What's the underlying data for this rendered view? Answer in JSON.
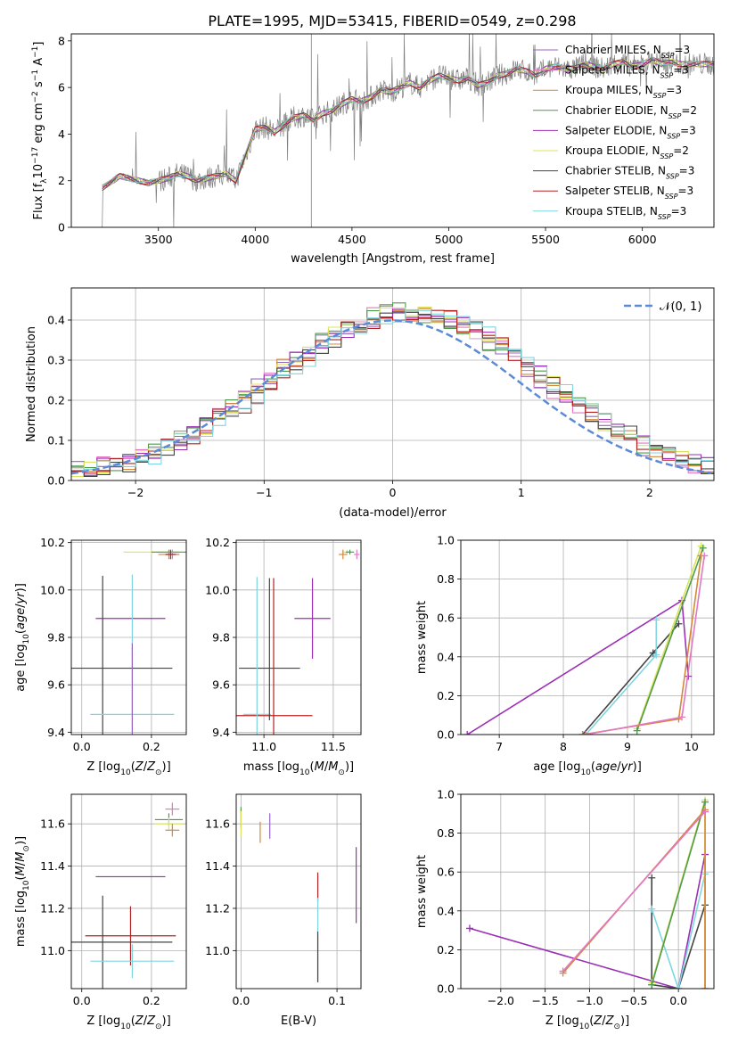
{
  "figure_title": "PLATE=1995, MJD=53415, FIBERID=0549, z=0.298",
  "colors": {
    "Chabrier MILES": "#9467bd",
    "Salpeter MILES": "#e377c2",
    "Kroupa MILES": "#d4883a",
    "Chabrier ELODIE": "#4f9a4f",
    "Salpeter ELODIE": "#9b2fb5",
    "Kroupa ELODIE": "#dbe45a",
    "Chabrier STELIB": "#444444",
    "Salpeter STELIB": "#b22222",
    "Kroupa STELIB": "#7fd6e0",
    "normal": "#5b8bd8",
    "data": "#7f7f7f"
  },
  "chart_data": [
    {
      "id": "spectrum",
      "type": "line",
      "title": "PLATE=1995, MJD=53415, FIBERID=0549, z=0.298",
      "xlabel": "wavelength [Angstrom, rest frame]",
      "ylabel": "Flux [f_λ 10^-17 erg cm^-2 s^-1 A^-1]",
      "xlim": [
        3050,
        6370
      ],
      "ylim": [
        0,
        8.3
      ],
      "xticks": [
        3500,
        4000,
        4500,
        5000,
        5500,
        6000
      ],
      "yticks": [
        0,
        2,
        4,
        6,
        8
      ],
      "legend_position": "top-right",
      "continuum_x": [
        3210,
        3250,
        3300,
        3350,
        3400,
        3450,
        3500,
        3550,
        3600,
        3650,
        3700,
        3750,
        3800,
        3850,
        3900,
        3950,
        4000,
        4050,
        4100,
        4150,
        4200,
        4250,
        4300,
        4350,
        4400,
        4450,
        4500,
        4550,
        4600,
        4650,
        4700,
        4750,
        4800,
        4850,
        4900,
        4950,
        5000,
        5050,
        5100,
        5150,
        5200,
        5250,
        5300,
        5350,
        5400,
        5450,
        5500,
        5550,
        5600,
        5650,
        5700,
        5750,
        5800,
        5850,
        5900,
        5950,
        6000,
        6050,
        6100,
        6150,
        6200
      ],
      "continuum_y": [
        1.7,
        1.9,
        2.2,
        2.1,
        2.0,
        1.9,
        2.0,
        2.1,
        2.3,
        2.2,
        2.0,
        2.1,
        2.2,
        2.3,
        2.0,
        3.1,
        4.2,
        4.3,
        4.1,
        4.4,
        4.7,
        4.8,
        4.6,
        4.9,
        5.0,
        5.3,
        5.5,
        5.4,
        5.6,
        5.9,
        5.8,
        6.0,
        6.2,
        6.0,
        6.3,
        6.5,
        6.4,
        6.3,
        6.4,
        6.1,
        6.2,
        6.5,
        6.6,
        6.8,
        6.7,
        6.5,
        6.8,
        6.9,
        6.8,
        6.8,
        7.0,
        6.9,
        6.8,
        7.0,
        7.1,
        6.9,
        7.0,
        7.2,
        7.0,
        7.1,
        7.0
      ],
      "series": [
        {
          "name": "Chabrier MILES, N_SSP=3"
        },
        {
          "name": "Salpeter MILES, N_SSP=3"
        },
        {
          "name": "Kroupa MILES, N_SSP=3"
        },
        {
          "name": "Chabrier ELODIE, N_SSP=2"
        },
        {
          "name": "Salpeter ELODIE, N_SSP=3"
        },
        {
          "name": "Kroupa ELODIE, N_SSP=2"
        },
        {
          "name": "Chabrier STELIB, N_SSP=3"
        },
        {
          "name": "Salpeter STELIB, N_SSP=3"
        },
        {
          "name": "Kroupa STELIB, N_SSP=3"
        }
      ]
    },
    {
      "id": "residuals",
      "type": "line",
      "xlabel": "(data-model)/error",
      "ylabel": "Normed distribution",
      "xlim": [
        -2.5,
        2.5
      ],
      "ylim": [
        0,
        0.48
      ],
      "xticks": [
        -2,
        -1,
        0,
        1,
        2
      ],
      "yticks": [
        0.0,
        0.1,
        0.2,
        0.3,
        0.4
      ],
      "grid": true,
      "legend_position": "top-right",
      "legend": "𝒩(0, 1)",
      "bin_width": 0.1
    },
    {
      "id": "age-vs-Z",
      "type": "scatter",
      "xlabel": "Z [log10(Z/Z⊙)]",
      "ylabel": "age [log10(age/yr)]",
      "xlim": [
        -0.03,
        0.3
      ],
      "ylim": [
        9.39,
        10.21
      ],
      "xticks": [
        0.0,
        0.2
      ],
      "yticks": [
        9.4,
        9.6,
        9.8,
        10.0,
        10.2
      ],
      "grid": true,
      "points": [
        {
          "model": "Kroupa ELODIE",
          "x": 0.2,
          "y": 10.16,
          "xerr": 0.08,
          "yerr": 0.01
        },
        {
          "model": "Chabrier ELODIE",
          "x": 0.25,
          "y": 10.16,
          "xerr": 0.05,
          "yerr": 0.01
        },
        {
          "model": "Salpeter MILES",
          "x": 0.26,
          "y": 10.15,
          "xerr": 0.02,
          "yerr": 0.02
        },
        {
          "model": "Kroupa MILES",
          "x": 0.25,
          "y": 10.15,
          "xerr": 0.03,
          "yerr": 0.02
        },
        {
          "model": "Salpeter STELIB",
          "x": 0.255,
          "y": 10.15,
          "xerr": 0.015,
          "yerr": 0.02
        },
        {
          "model": "Salpeter ELODIE",
          "x": 0.14,
          "y": 9.88,
          "xerr": 0.1,
          "yerr": 0.0
        },
        {
          "model": "Chabrier STELIB",
          "x": 0.06,
          "y": 9.67,
          "xerr": 0.2,
          "yerr": 0.39
        },
        {
          "model": "Kroupa STELIB",
          "x": 0.145,
          "y": 9.475,
          "xerr": 0.12,
          "yerr": 0.59
        },
        {
          "model": "Chabrier MILES",
          "x": 0.145,
          "y": 9.475,
          "xerr": 0.0,
          "yerr": 0.3
        }
      ]
    },
    {
      "id": "age-vs-mass",
      "type": "scatter",
      "xlabel": "mass [log10(M/M⊙)]",
      "ylabel": "",
      "xlim": [
        10.8,
        11.7
      ],
      "ylim": [
        9.39,
        10.21
      ],
      "xticks": [
        11.0,
        11.5
      ],
      "yticks": [
        9.4,
        9.6,
        9.8,
        10.0,
        10.2
      ],
      "grid": true,
      "points": [
        {
          "model": "Salpeter ELODIE",
          "x": 11.35,
          "y": 9.88,
          "xerr": 0.13,
          "yerr": 0.17
        },
        {
          "model": "Chabrier STELIB",
          "x": 11.04,
          "y": 9.67,
          "xerr": 0.22,
          "yerr": 0.0
        },
        {
          "model": "Salpeter STELIB",
          "x": 11.07,
          "y": 9.47,
          "xerr": 0.28,
          "yerr": 0.58
        },
        {
          "model": "Kroupa STELIB",
          "x": 10.95,
          "y": 9.475,
          "xerr": 0.1,
          "yerr": 0.58
        },
        {
          "model": "Chabrier STELIB",
          "x": 11.04,
          "y": 9.75,
          "xerr": 0.0,
          "yerr": 0.3
        },
        {
          "model": "Kroupa ELODIE",
          "x": 11.6,
          "y": 10.16,
          "xerr": 0.03,
          "yerr": 0.01
        },
        {
          "model": "Chabrier ELODIE",
          "x": 11.62,
          "y": 10.16,
          "xerr": 0.03,
          "yerr": 0.01
        },
        {
          "model": "Kroupa MILES",
          "x": 11.57,
          "y": 10.15,
          "xerr": 0.03,
          "yerr": 0.02
        },
        {
          "model": "Salpeter MILES",
          "x": 11.67,
          "y": 10.15,
          "xerr": 0.02,
          "yerr": 0.02
        }
      ]
    },
    {
      "id": "weight-vs-age",
      "type": "line",
      "xlabel": "age [log10(age/yr)]",
      "ylabel": "mass weight",
      "xlim": [
        6.4,
        10.35
      ],
      "ylim": [
        0,
        1.0
      ],
      "xticks": [
        7,
        8,
        9,
        10
      ],
      "yticks": [
        0.0,
        0.2,
        0.4,
        0.6,
        0.8,
        1.0
      ],
      "grid": true,
      "series": [
        {
          "model": "Salpeter ELODIE",
          "x": [
            6.5,
            9.85,
            9.95
          ],
          "y": [
            0.0,
            0.69,
            0.3
          ]
        },
        {
          "model": "Chabrier STELIB",
          "x": [
            8.3,
            9.4,
            9.8
          ],
          "y": [
            0.0,
            0.42,
            0.57
          ]
        },
        {
          "model": "Kroupa STELIB",
          "x": [
            8.35,
            9.45,
            9.45
          ],
          "y": [
            0.0,
            0.41,
            0.59
          ]
        },
        {
          "model": "Kroupa ELODIE",
          "x": [
            9.15,
            10.15
          ],
          "y": [
            0.03,
            0.97
          ]
        },
        {
          "model": "Chabrier ELODIE",
          "x": [
            9.15,
            10.18
          ],
          "y": [
            0.02,
            0.96
          ]
        },
        {
          "model": "Kroupa MILES",
          "x": [
            8.3,
            9.8,
            10.15
          ],
          "y": [
            0.0,
            0.08,
            0.92
          ]
        },
        {
          "model": "Salpeter MILES",
          "x": [
            8.35,
            9.85,
            10.2
          ],
          "y": [
            0.0,
            0.09,
            0.92
          ]
        }
      ]
    },
    {
      "id": "mass-vs-Z",
      "type": "scatter",
      "xlabel": "Z [log10(Z/Z⊙)]",
      "ylabel": "mass [log10(M/M⊙)]",
      "xlim": [
        -0.03,
        0.3
      ],
      "ylim": [
        10.82,
        11.74
      ],
      "xticks": [
        0.0,
        0.2
      ],
      "yticks": [
        11.0,
        11.2,
        11.4,
        11.6
      ],
      "grid": true,
      "points": [
        {
          "model": "Salpeter MILES",
          "x": 0.26,
          "y": 11.67,
          "xerr": 0.02,
          "yerr": 0.03
        },
        {
          "model": "Chabrier ELODIE",
          "x": 0.25,
          "y": 11.62,
          "xerr": 0.04,
          "yerr": 0.03
        },
        {
          "model": "Kroupa ELODIE",
          "x": 0.25,
          "y": 11.6,
          "xerr": 0.04,
          "yerr": 0.03
        },
        {
          "model": "Kroupa MILES",
          "x": 0.26,
          "y": 11.57,
          "xerr": 0.02,
          "yerr": 0.03
        },
        {
          "model": "Salpeter ELODIE",
          "x": 0.14,
          "y": 11.35,
          "xerr": 0.1,
          "yerr": 0.0
        },
        {
          "model": "Salpeter STELIB",
          "x": 0.14,
          "y": 11.07,
          "xerr": 0.13,
          "yerr": 0.14
        },
        {
          "model": "Chabrier STELIB",
          "x": 0.06,
          "y": 11.04,
          "xerr": 0.2,
          "yerr": 0.22
        },
        {
          "model": "Kroupa STELIB",
          "x": 0.145,
          "y": 10.95,
          "xerr": 0.12,
          "yerr": 0.08
        }
      ]
    },
    {
      "id": "mass-vs-ebv",
      "type": "scatter",
      "xlabel": "E(B-V)",
      "ylabel": "",
      "xlim": [
        -0.005,
        0.125
      ],
      "ylim": [
        10.82,
        11.74
      ],
      "xticks": [
        0.0,
        0.1
      ],
      "yticks": [
        11.0,
        11.2,
        11.4,
        11.6
      ],
      "grid": true,
      "points": [
        {
          "model": "Chabrier ELODIE",
          "x": 0.0,
          "y": 11.63,
          "xerr": 0.0,
          "yerr": 0.05
        },
        {
          "model": "Kroupa ELODIE",
          "x": 0.0,
          "y": 11.6,
          "xerr": 0.0,
          "yerr": 0.06
        },
        {
          "model": "Kroupa MILES",
          "x": 0.02,
          "y": 11.56,
          "xerr": 0.0,
          "yerr": 0.05
        },
        {
          "model": "Chabrier MILES",
          "x": 0.03,
          "y": 11.59,
          "xerr": 0.0,
          "yerr": 0.06
        },
        {
          "model": "Salpeter ELODIE",
          "x": 0.12,
          "y": 11.31,
          "xerr": 0.0,
          "yerr": 0.18
        },
        {
          "model": "Salpeter STELIB",
          "x": 0.08,
          "y": 11.3,
          "xerr": 0.0,
          "yerr": 0.07
        },
        {
          "model": "Kroupa STELIB",
          "x": 0.08,
          "y": 11.05,
          "xerr": 0.0,
          "yerr": 0.2
        },
        {
          "model": "Chabrier STELIB",
          "x": 0.08,
          "y": 10.97,
          "xerr": 0.0,
          "yerr": 0.12
        }
      ]
    },
    {
      "id": "weight-vs-Z",
      "type": "line",
      "xlabel": "Z [log10(Z/Z⊙)]",
      "ylabel": "mass weight",
      "xlim": [
        -2.45,
        0.4
      ],
      "ylim": [
        0,
        1.0
      ],
      "xticks": [
        -2.0,
        -1.5,
        -1.0,
        -0.5,
        0.0
      ],
      "yticks": [
        0.0,
        0.2,
        0.4,
        0.6,
        0.8,
        1.0
      ],
      "grid": true,
      "series": [
        {
          "model": "Salpeter ELODIE",
          "x": [
            -2.35,
            0.0,
            0.3,
            0.3
          ],
          "y": [
            0.31,
            0.0,
            0.69,
            0.0
          ]
        },
        {
          "model": "Chabrier STELIB",
          "x": [
            -0.3,
            -0.3,
            0.0,
            0.3
          ],
          "y": [
            0.57,
            0.02,
            0.0,
            0.43
          ]
        },
        {
          "model": "Kroupa STELIB",
          "x": [
            -0.3,
            0.0,
            0.3
          ],
          "y": [
            0.41,
            0.0,
            0.59
          ]
        },
        {
          "model": "Kroupa ELODIE",
          "x": [
            -0.3,
            0.3,
            0.3
          ],
          "y": [
            0.03,
            0.97,
            0.0
          ]
        },
        {
          "model": "Chabrier ELODIE",
          "x": [
            -0.3,
            0.3
          ],
          "y": [
            0.02,
            0.96
          ]
        },
        {
          "model": "Kroupa MILES",
          "x": [
            -1.3,
            0.3,
            0.3
          ],
          "y": [
            0.08,
            0.92,
            0.0
          ]
        },
        {
          "model": "Salpeter MILES",
          "x": [
            -1.3,
            0.3
          ],
          "y": [
            0.09,
            0.91
          ]
        }
      ]
    }
  ]
}
